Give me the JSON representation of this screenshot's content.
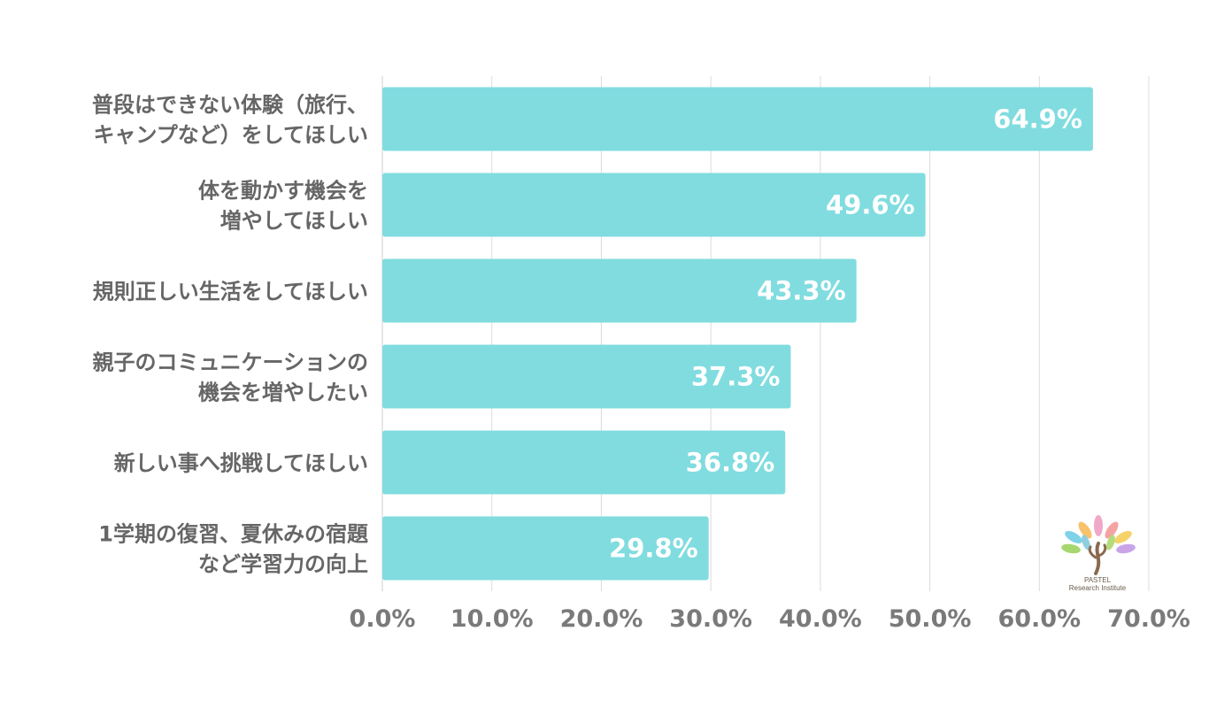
{
  "chart_data": {
    "type": "bar",
    "orientation": "horizontal",
    "categories": [
      [
        "普段はできない体験（旅行、",
        "キャンプなど）をしてほしい"
      ],
      [
        "体を動かす機会を",
        "増やしてほしい"
      ],
      [
        "規則正しい生活をしてほしい"
      ],
      [
        "親子のコミュニケーションの",
        "機会を増やしたい"
      ],
      [
        "新しい事へ挑戦してほしい"
      ],
      [
        "1学期の復習、夏休みの宿題",
        "など学習力の向上"
      ]
    ],
    "values": [
      64.9,
      49.6,
      43.3,
      37.3,
      36.8,
      29.8
    ],
    "data_labels": [
      "64.9%",
      "49.6%",
      "43.3%",
      "37.3%",
      "36.8%",
      "29.8%"
    ],
    "xlim": [
      0,
      70
    ],
    "x_ticks": [
      0,
      10,
      20,
      30,
      40,
      50,
      60,
      70
    ],
    "x_tick_labels": [
      "0.0%",
      "10.0%",
      "20.0%",
      "30.0%",
      "40.0%",
      "50.0%",
      "60.0%",
      "70.0%"
    ],
    "grid": true,
    "bar_color": "#80dcdf",
    "grid_color": "#dcdcdc"
  },
  "logo": {
    "name": "PASTEL",
    "subtitle": "Research Institute"
  }
}
